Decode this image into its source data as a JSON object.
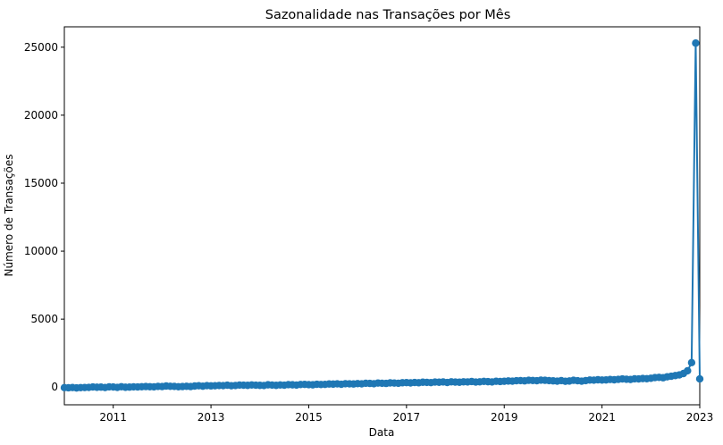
{
  "chart_data": {
    "type": "line",
    "title": "Sazonalidade nas Transações por Mês",
    "xlabel": "Data",
    "ylabel": "Número de Transações",
    "x_ticks": [
      "2011",
      "2013",
      "2015",
      "2017",
      "2019",
      "2021",
      "2023"
    ],
    "y_ticks": [
      "0",
      "5000",
      "10000",
      "15000",
      "20000",
      "25000"
    ],
    "xlim": [
      "2010-01",
      "2023-01"
    ],
    "ylim": [
      -1300,
      26500
    ],
    "grid": false,
    "marker": "circle",
    "color": "#1f77b4",
    "series": [
      {
        "x": [
          "2010-01",
          "2010-02",
          "2010-03",
          "2010-04",
          "2010-05",
          "2010-06",
          "2010-07",
          "2010-08",
          "2010-09",
          "2010-10",
          "2010-11",
          "2010-12",
          "2011-01",
          "2011-02",
          "2011-03",
          "2011-04",
          "2011-05",
          "2011-06",
          "2011-07",
          "2011-08",
          "2011-09",
          "2011-10",
          "2011-11",
          "2011-12",
          "2012-01",
          "2012-02",
          "2012-03",
          "2012-04",
          "2012-05",
          "2012-06",
          "2012-07",
          "2012-08",
          "2012-09",
          "2012-10",
          "2012-11",
          "2012-12",
          "2013-01",
          "2013-02",
          "2013-03",
          "2013-04",
          "2013-05",
          "2013-06",
          "2013-07",
          "2013-08",
          "2013-09",
          "2013-10",
          "2013-11",
          "2013-12",
          "2014-01",
          "2014-02",
          "2014-03",
          "2014-04",
          "2014-05",
          "2014-06",
          "2014-07",
          "2014-08",
          "2014-09",
          "2014-10",
          "2014-11",
          "2014-12",
          "2015-01",
          "2015-02",
          "2015-03",
          "2015-04",
          "2015-05",
          "2015-06",
          "2015-07",
          "2015-08",
          "2015-09",
          "2015-10",
          "2015-11",
          "2015-12",
          "2016-01",
          "2016-02",
          "2016-03",
          "2016-04",
          "2016-05",
          "2016-06",
          "2016-07",
          "2016-08",
          "2016-09",
          "2016-10",
          "2016-11",
          "2016-12",
          "2017-01",
          "2017-02",
          "2017-03",
          "2017-04",
          "2017-05",
          "2017-06",
          "2017-07",
          "2017-08",
          "2017-09",
          "2017-10",
          "2017-11",
          "2017-12",
          "2018-01",
          "2018-02",
          "2018-03",
          "2018-04",
          "2018-05",
          "2018-06",
          "2018-07",
          "2018-08",
          "2018-09",
          "2018-10",
          "2018-11",
          "2018-12",
          "2019-01",
          "2019-02",
          "2019-03",
          "2019-04",
          "2019-05",
          "2019-06",
          "2019-07",
          "2019-08",
          "2019-09",
          "2019-10",
          "2019-11",
          "2019-12",
          "2020-01",
          "2020-02",
          "2020-03",
          "2020-04",
          "2020-05",
          "2020-06",
          "2020-07",
          "2020-08",
          "2020-09",
          "2020-10",
          "2020-11",
          "2020-12",
          "2021-01",
          "2021-02",
          "2021-03",
          "2021-04",
          "2021-05",
          "2021-06",
          "2021-07",
          "2021-08",
          "2021-09",
          "2021-10",
          "2021-11",
          "2021-12",
          "2022-01",
          "2022-02",
          "2022-03",
          "2022-04",
          "2022-05",
          "2022-06",
          "2022-07",
          "2022-08",
          "2022-09",
          "2022-10",
          "2022-11",
          "2022-12",
          "2023-01"
        ],
        "values": [
          -40,
          -50,
          -30,
          -60,
          -40,
          -30,
          -20,
          10,
          -10,
          0,
          -30,
          20,
          10,
          -20,
          30,
          -10,
          0,
          20,
          10,
          30,
          40,
          30,
          20,
          50,
          40,
          80,
          60,
          50,
          30,
          40,
          60,
          40,
          80,
          100,
          70,
          110,
          90,
          100,
          120,
          110,
          140,
          100,
          120,
          150,
          140,
          130,
          160,
          140,
          130,
          120,
          170,
          150,
          130,
          160,
          140,
          180,
          170,
          150,
          190,
          200,
          180,
          170,
          210,
          190,
          200,
          230,
          220,
          240,
          210,
          250,
          240,
          230,
          260,
          240,
          280,
          270,
          250,
          300,
          280,
          270,
          310,
          300,
          280,
          320,
          330,
          310,
          340,
          320,
          360,
          350,
          330,
          370,
          360,
          380,
          340,
          390,
          370,
          360,
          390,
          380,
          410,
          370,
          390,
          420,
          400,
          380,
          430,
          410,
          430,
          450,
          440,
          470,
          480,
          460,
          500,
          490,
          470,
          510,
          500,
          480,
          460,
          440,
          480,
          430,
          450,
          500,
          470,
          440,
          480,
          520,
          510,
          540,
          520,
          530,
          560,
          540,
          570,
          600,
          580,
          560,
          610,
          600,
          630,
          620,
          650,
          700,
          720,
          690,
          760,
          800,
          850,
          900,
          1000,
          1200,
          1800,
          25300,
          600
        ]
      }
    ]
  }
}
